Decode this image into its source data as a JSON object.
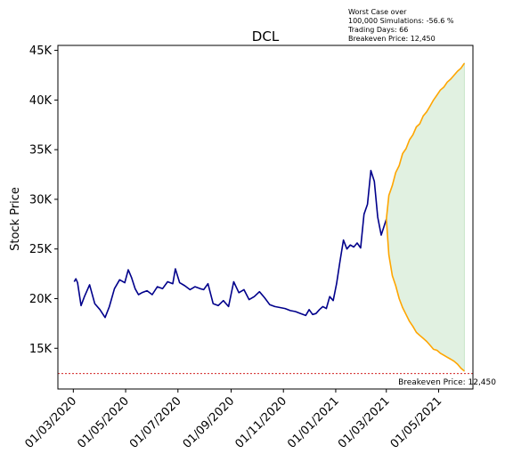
{
  "chart_data": {
    "type": "line",
    "title": "DCL",
    "xlabel": "",
    "ylabel": "Stock Price",
    "annotation_lines": [
      "Worst Case over",
      "100,000 Simulations: -56.6 %",
      "Trading Days: 66",
      "Breakeven Price: 12,450"
    ],
    "breakeven_label": "Breakeven Price: 12,450",
    "breakeven_value": 12450,
    "xlim": [
      "2020-02-12",
      "2021-06-10"
    ],
    "ylim": [
      10900,
      45500
    ],
    "grid": false,
    "legend": "none",
    "x_ticks": [
      {
        "date": "2020-03-01",
        "label": "01/03/2020"
      },
      {
        "date": "2020-05-01",
        "label": "01/05/2020"
      },
      {
        "date": "2020-07-01",
        "label": "01/07/2020"
      },
      {
        "date": "2020-09-01",
        "label": "01/09/2020"
      },
      {
        "date": "2020-11-01",
        "label": "01/11/2020"
      },
      {
        "date": "2021-01-01",
        "label": "01/01/2021"
      },
      {
        "date": "2021-03-01",
        "label": "01/03/2021"
      },
      {
        "date": "2021-05-01",
        "label": "01/05/2021"
      }
    ],
    "y_ticks": [
      {
        "value": 15000,
        "label": "15K"
      },
      {
        "value": 20000,
        "label": "20K"
      },
      {
        "value": 25000,
        "label": "25K"
      },
      {
        "value": 30000,
        "label": "30K"
      },
      {
        "value": 35000,
        "label": "35K"
      },
      {
        "value": 40000,
        "label": "40K"
      },
      {
        "value": 45000,
        "label": "45K"
      }
    ],
    "colors": {
      "history": "#00008b",
      "projection": "#ffa500",
      "band": "#c8e6c9",
      "breakeven": "#cc0000"
    },
    "series": [
      {
        "key": "history",
        "x": [
          "2020-03-02",
          "2020-03-04",
          "2020-03-06",
          "2020-03-10",
          "2020-03-14",
          "2020-03-20",
          "2020-03-26",
          "2020-04-01",
          "2020-04-07",
          "2020-04-12",
          "2020-04-18",
          "2020-04-24",
          "2020-04-30",
          "2020-05-04",
          "2020-05-08",
          "2020-05-12",
          "2020-05-16",
          "2020-05-20",
          "2020-05-26",
          "2020-06-01",
          "2020-06-07",
          "2020-06-13",
          "2020-06-19",
          "2020-06-25",
          "2020-06-28",
          "2020-07-03",
          "2020-07-09",
          "2020-07-15",
          "2020-07-21",
          "2020-07-27",
          "2020-07-31",
          "2020-08-05",
          "2020-08-11",
          "2020-08-17",
          "2020-08-23",
          "2020-08-29",
          "2020-09-04",
          "2020-09-10",
          "2020-09-16",
          "2020-09-22",
          "2020-09-28",
          "2020-10-04",
          "2020-10-10",
          "2020-10-16",
          "2020-10-22",
          "2020-10-28",
          "2020-11-03",
          "2020-11-09",
          "2020-11-15",
          "2020-11-21",
          "2020-11-27",
          "2020-12-01",
          "2020-12-05",
          "2020-12-09",
          "2020-12-13",
          "2020-12-17",
          "2020-12-21",
          "2020-12-25",
          "2020-12-29",
          "2021-01-02",
          "2021-01-06",
          "2021-01-10",
          "2021-01-14",
          "2021-01-18",
          "2021-01-22",
          "2021-01-26",
          "2021-01-30",
          "2021-02-03",
          "2021-02-07",
          "2021-02-11",
          "2021-02-15",
          "2021-02-19",
          "2021-02-23",
          "2021-03-01"
        ],
        "values": [
          21700,
          22000,
          21600,
          19300,
          20200,
          21400,
          19500,
          18900,
          18100,
          19200,
          21000,
          21900,
          21600,
          22900,
          22100,
          21000,
          20400,
          20600,
          20800,
          20400,
          21200,
          21000,
          21700,
          21500,
          23000,
          21600,
          21300,
          20900,
          21200,
          21000,
          20900,
          21500,
          19500,
          19300,
          19800,
          19200,
          21700,
          20600,
          20900,
          19900,
          20200,
          20700,
          20100,
          19400,
          19200,
          19100,
          19000,
          18800,
          18700,
          18500,
          18300,
          18900,
          18400,
          18500,
          18900,
          19200,
          19000,
          20200,
          19800,
          21500,
          23800,
          25900,
          25000,
          25400,
          25200,
          25600,
          25100,
          28500,
          29500,
          32900,
          31800,
          28200,
          26400,
          28000
        ]
      },
      {
        "key": "projection_upper",
        "x": [
          "2021-03-01",
          "2021-03-04",
          "2021-03-08",
          "2021-03-12",
          "2021-03-16",
          "2021-03-20",
          "2021-03-24",
          "2021-03-28",
          "2021-04-01",
          "2021-04-05",
          "2021-04-09",
          "2021-04-13",
          "2021-04-17",
          "2021-04-21",
          "2021-04-25",
          "2021-04-29",
          "2021-05-03",
          "2021-05-07",
          "2021-05-11",
          "2021-05-15",
          "2021-05-19",
          "2021-05-23",
          "2021-05-27",
          "2021-05-31"
        ],
        "values": [
          28000,
          30400,
          31400,
          32700,
          33400,
          34600,
          35100,
          36000,
          36500,
          37300,
          37600,
          38400,
          38800,
          39400,
          40000,
          40500,
          41000,
          41300,
          41800,
          42100,
          42500,
          42900,
          43200,
          43700
        ]
      },
      {
        "key": "projection_lower",
        "x": [
          "2021-03-01",
          "2021-03-04",
          "2021-03-08",
          "2021-03-12",
          "2021-03-16",
          "2021-03-20",
          "2021-03-24",
          "2021-03-28",
          "2021-04-01",
          "2021-04-05",
          "2021-04-09",
          "2021-04-13",
          "2021-04-17",
          "2021-04-21",
          "2021-04-25",
          "2021-04-29",
          "2021-05-03",
          "2021-05-07",
          "2021-05-11",
          "2021-05-15",
          "2021-05-19",
          "2021-05-23",
          "2021-05-27",
          "2021-05-31"
        ],
        "values": [
          28000,
          24400,
          22300,
          21300,
          20000,
          19100,
          18400,
          17700,
          17200,
          16600,
          16300,
          16000,
          15700,
          15300,
          14900,
          14800,
          14500,
          14300,
          14100,
          13900,
          13700,
          13400,
          13000,
          12700
        ]
      }
    ]
  }
}
